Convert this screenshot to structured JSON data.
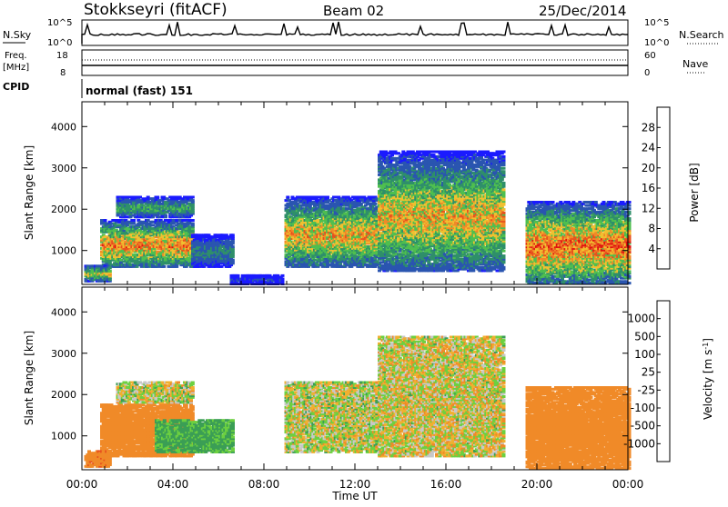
{
  "header": {
    "title": "Stokkseyri (fitACF)",
    "beam": "Beam 02",
    "date": "25/Dec/2014"
  },
  "panels": {
    "nsky": {
      "left_label": "N.Sky",
      "left_ticks": [
        "10^5",
        "10^0"
      ],
      "right_label": "N.Search",
      "right_ticks": [
        "10^5",
        "10^0"
      ]
    },
    "freq": {
      "left_label_1": "Freq.",
      "left_label_2": "[MHz]",
      "left_ticks": [
        "18",
        "8"
      ],
      "right_label": "Nave",
      "right_ticks": [
        "60",
        "0"
      ]
    },
    "cpid": {
      "label": "CPID",
      "value": "normal (fast) 151"
    }
  },
  "chart_data": [
    {
      "type": "heatmap",
      "name": "power",
      "xlabel": "Time UT",
      "ylabel": "Slant Range [km]",
      "x_ticks": [
        "00:00",
        "04:00",
        "08:00",
        "12:00",
        "16:00",
        "20:00",
        "00:00"
      ],
      "xlim_hours": [
        0,
        24
      ],
      "y_ticks": [
        1000,
        2000,
        3000,
        4000
      ],
      "ylim": [
        180,
        4600
      ],
      "colorbar": {
        "label": "Power [dB]",
        "ticks": [
          "4",
          "8",
          "12",
          "16",
          "20",
          "24",
          "28"
        ],
        "colors": [
          "#1a1aff",
          "#2a55b0",
          "#2f8f6a",
          "#4fbf4f",
          "#f0c030",
          "#f08a28",
          "#e8501e",
          "#e01010"
        ],
        "range": [
          0,
          30
        ]
      },
      "regions": [
        {
          "t": [
            0.8,
            4.8
          ],
          "r": [
            600,
            1750
          ],
          "peak": 24
        },
        {
          "t": [
            1.5,
            4.8
          ],
          "r": [
            1800,
            2300
          ],
          "peak": 13
        },
        {
          "t": [
            0.1,
            1.2
          ],
          "r": [
            250,
            650
          ],
          "peak": 18
        },
        {
          "t": [
            4.8,
            6.6
          ],
          "r": [
            600,
            1400
          ],
          "peak": 10
        },
        {
          "t": [
            8.9,
            12.9
          ],
          "r": [
            600,
            2300
          ],
          "peak": 22
        },
        {
          "t": [
            13.0,
            18.5
          ],
          "r": [
            500,
            3400
          ],
          "peak": 21
        },
        {
          "t": [
            19.5,
            24.0
          ],
          "r": [
            200,
            2200
          ],
          "peak": 26
        },
        {
          "t": [
            6.5,
            8.8
          ],
          "r": [
            180,
            420
          ],
          "peak": 5
        }
      ]
    },
    {
      "type": "heatmap",
      "name": "velocity",
      "xlabel": "Time UT",
      "ylabel": "Slant Range [km]",
      "x_ticks": [
        "00:00",
        "04:00",
        "08:00",
        "12:00",
        "16:00",
        "20:00",
        "00:00"
      ],
      "xlim_hours": [
        0,
        24
      ],
      "y_ticks": [
        1000,
        2000,
        3000,
        4000
      ],
      "ylim": [
        180,
        4600
      ],
      "colorbar": {
        "label": "Velocity [m s^-1]",
        "ticks": [
          "1000",
          "500",
          "100",
          "25",
          "-25",
          "-100",
          "-500",
          "-1000"
        ],
        "colors": [
          "#2a45c0",
          "#2f7fa0",
          "#3b9e55",
          "#6cd040",
          "#c8c8c8",
          "#f0b030",
          "#f08a28",
          "#e8501e",
          "#e01010"
        ]
      },
      "regions": [
        {
          "t": [
            0.8,
            4.8
          ],
          "r": [
            500,
            1750
          ],
          "v": -300
        },
        {
          "t": [
            3.2,
            6.6
          ],
          "r": [
            600,
            1400
          ],
          "v": 150
        },
        {
          "t": [
            1.5,
            4.8
          ],
          "r": [
            1800,
            2300
          ],
          "v": 0
        },
        {
          "t": [
            8.9,
            12.9
          ],
          "r": [
            600,
            2300
          ],
          "v": 0
        },
        {
          "t": [
            13.0,
            18.5
          ],
          "r": [
            500,
            3400
          ],
          "v": -20
        },
        {
          "t": [
            19.5,
            24.0
          ],
          "r": [
            200,
            2200
          ],
          "v": -250
        },
        {
          "t": [
            0.1,
            1.2
          ],
          "r": [
            250,
            650
          ],
          "v": -400
        }
      ]
    }
  ]
}
